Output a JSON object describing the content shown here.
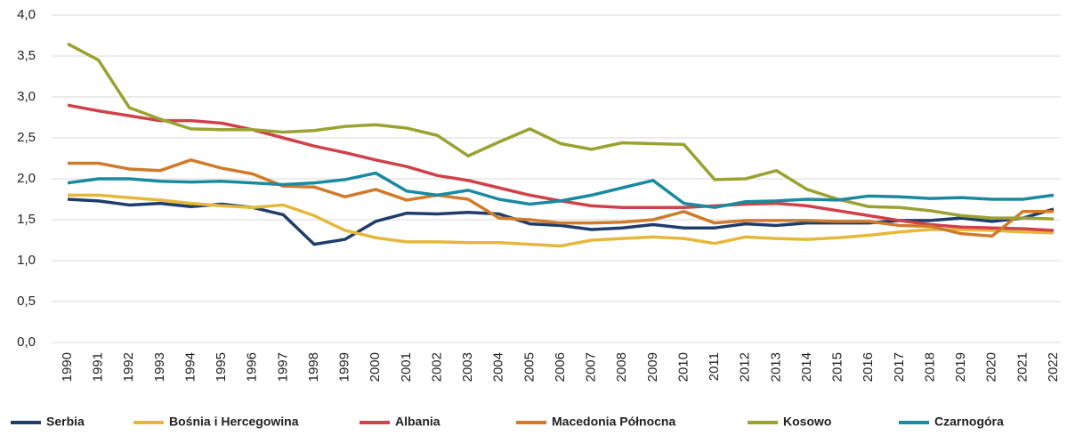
{
  "chart_data": {
    "type": "line",
    "categories": [
      "1990",
      "1991",
      "1992",
      "1993",
      "1994",
      "1995",
      "1996",
      "1997",
      "1998",
      "1999",
      "2000",
      "2001",
      "2002",
      "2003",
      "2004",
      "2005",
      "2006",
      "2007",
      "2008",
      "2009",
      "2010",
      "2011",
      "2012",
      "2013",
      "2014",
      "2015",
      "2016",
      "2017",
      "2018",
      "2019",
      "2020",
      "2021",
      "2022"
    ],
    "ylim": [
      0,
      4
    ],
    "yticks": [
      {
        "value": 0,
        "label": "0,0"
      },
      {
        "value": 0.5,
        "label": "0,5"
      },
      {
        "value": 1,
        "label": "1,0"
      },
      {
        "value": 1.5,
        "label": "1,5"
      },
      {
        "value": 2,
        "label": "2,0"
      },
      {
        "value": 2.5,
        "label": "2,5"
      },
      {
        "value": 3,
        "label": "3,0"
      },
      {
        "value": 3.5,
        "label": "3,5"
      },
      {
        "value": 4,
        "label": "4,0"
      }
    ],
    "grid": true,
    "legend": "bottom",
    "series": [
      {
        "name": "Serbia",
        "color": "#1f3d6b",
        "values": [
          1.75,
          1.73,
          1.68,
          1.7,
          1.66,
          1.69,
          1.65,
          1.56,
          1.2,
          1.26,
          1.48,
          1.58,
          1.57,
          1.59,
          1.57,
          1.45,
          1.43,
          1.38,
          1.4,
          1.44,
          1.4,
          1.4,
          1.45,
          1.43,
          1.46,
          1.46,
          1.46,
          1.49,
          1.49,
          1.52,
          1.48,
          1.52,
          1.63
        ]
      },
      {
        "name": "Bośnia i Hercegowina",
        "color": "#e6b83a",
        "values": [
          1.8,
          1.8,
          1.77,
          1.74,
          1.7,
          1.67,
          1.65,
          1.68,
          1.55,
          1.37,
          1.28,
          1.23,
          1.23,
          1.22,
          1.22,
          1.2,
          1.18,
          1.25,
          1.27,
          1.29,
          1.27,
          1.21,
          1.29,
          1.27,
          1.26,
          1.28,
          1.31,
          1.35,
          1.38,
          1.38,
          1.37,
          1.35,
          1.34
        ]
      },
      {
        "name": "Albania",
        "color": "#d0414a",
        "values": [
          2.9,
          2.83,
          2.77,
          2.71,
          2.71,
          2.68,
          2.6,
          2.5,
          2.4,
          2.32,
          2.23,
          2.15,
          2.04,
          1.98,
          1.89,
          1.8,
          1.73,
          1.67,
          1.65,
          1.65,
          1.65,
          1.67,
          1.69,
          1.7,
          1.67,
          1.61,
          1.55,
          1.49,
          1.44,
          1.41,
          1.4,
          1.39,
          1.37
        ]
      },
      {
        "name": "Macedonia Północna",
        "color": "#d07a2b",
        "values": [
          2.19,
          2.19,
          2.12,
          2.1,
          2.23,
          2.13,
          2.06,
          1.91,
          1.9,
          1.78,
          1.87,
          1.74,
          1.8,
          1.75,
          1.52,
          1.5,
          1.46,
          1.46,
          1.47,
          1.5,
          1.6,
          1.46,
          1.49,
          1.49,
          1.49,
          1.48,
          1.48,
          1.43,
          1.42,
          1.33,
          1.3,
          1.6,
          1.6
        ]
      },
      {
        "name": "Kosowo",
        "color": "#9aa232",
        "values": [
          3.65,
          3.45,
          2.87,
          2.73,
          2.61,
          2.6,
          2.6,
          2.57,
          2.59,
          2.64,
          2.66,
          2.62,
          2.53,
          2.28,
          2.45,
          2.61,
          2.43,
          2.36,
          2.44,
          2.43,
          2.42,
          1.99,
          2.0,
          2.1,
          1.87,
          1.75,
          1.66,
          1.65,
          1.61,
          1.55,
          1.52,
          1.52,
          1.51
        ]
      },
      {
        "name": "Czarnogóra",
        "color": "#1a8aa0",
        "values": [
          1.95,
          2.0,
          2.0,
          1.97,
          1.96,
          1.97,
          1.95,
          1.93,
          1.95,
          1.99,
          2.07,
          1.85,
          1.8,
          1.86,
          1.75,
          1.69,
          1.73,
          1.8,
          1.89,
          1.98,
          1.7,
          1.65,
          1.72,
          1.73,
          1.75,
          1.74,
          1.79,
          1.78,
          1.76,
          1.77,
          1.75,
          1.75,
          1.8
        ]
      }
    ]
  }
}
